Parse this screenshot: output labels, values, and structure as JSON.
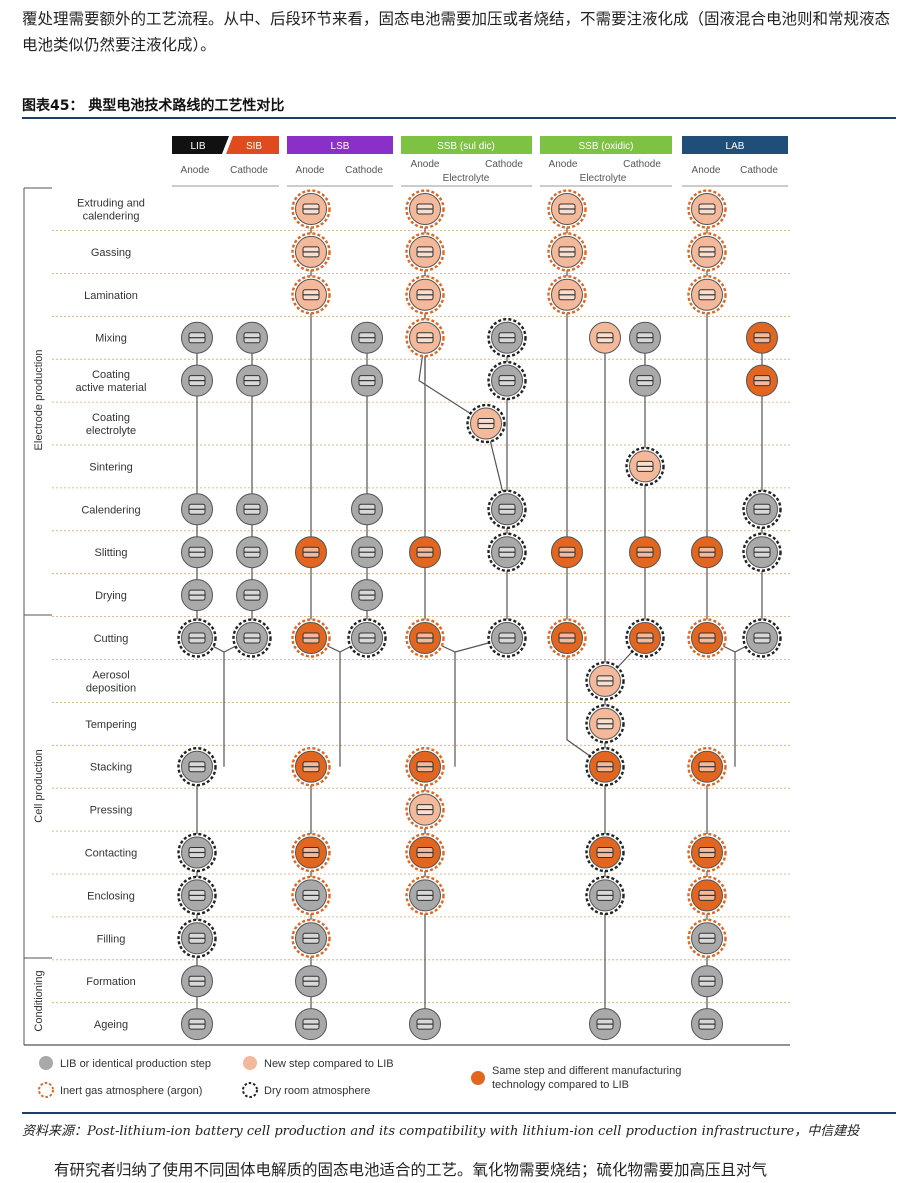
{
  "text_top": "覆处理需要额外的工艺流程。从中、后段环节来看，固态电池需要加压或者烧结，不需要注液化成（固液混合电池则和常规液态电池类似仍然要注液化成）。",
  "figure_title": "图表45：  典型电池技术路线的工艺性对比",
  "source": "资料来源：Post-lithium-ion battery cell production and its compatibility with lithium-ion cell production infrastructure，中信建投",
  "text_bottom": "有研究者归纳了使用不同固体电解质的固态电池适合的工艺。氧化物需要烧结；硫化物需要加高压且对气",
  "headers": {
    "lib": "LIB",
    "sib": "SIB",
    "lsb": "LSB",
    "ssb_sul": "SSB (sul dic)",
    "ssb_ox": "SSB (oxidic)",
    "lab": "LAB",
    "anode": "Anode",
    "cathode": "Cathode",
    "electrolyte": "Electrolyte"
  },
  "sections": {
    "electrode": "Electrode production",
    "cell": "Cell production",
    "conditioning": "Conditioning"
  },
  "steps": [
    [
      "Extruding and",
      "calendering"
    ],
    [
      "Gassing"
    ],
    [
      "Lamination"
    ],
    [
      "Mixing"
    ],
    [
      "Coating",
      "active material"
    ],
    [
      "Coating",
      "electrolyte"
    ],
    [
      "Sintering"
    ],
    [
      "Calendering"
    ],
    [
      "Slitting"
    ],
    [
      "Drying"
    ],
    [
      "Cutting"
    ],
    [
      "Aerosol",
      "deposition"
    ],
    [
      "Tempering"
    ],
    [
      "Stacking"
    ],
    [
      "Pressing"
    ],
    [
      "Contacting"
    ],
    [
      "Enclosing"
    ],
    [
      "Filling"
    ],
    [
      "Formation"
    ],
    [
      "Ageing"
    ]
  ],
  "legend": {
    "grey": "LIB or identical production step",
    "peach": "New step compared to LIB",
    "orange_l1": "Same step and different manufacturing",
    "orange_l2": "technology compared to LIB",
    "inert": "Inert gas atmosphere (argon)",
    "dry": "Dry room atmosphere"
  },
  "colors": {
    "grey": "#a9a9a9",
    "peach": "#f4b99a",
    "orange": "#e2661f",
    "lib_header": "#111111",
    "sib_header": "#e04a1f",
    "lsb_header": "#8b2fc9",
    "ssb_header": "#7dc242",
    "lab_header": "#1f4e79"
  }
}
